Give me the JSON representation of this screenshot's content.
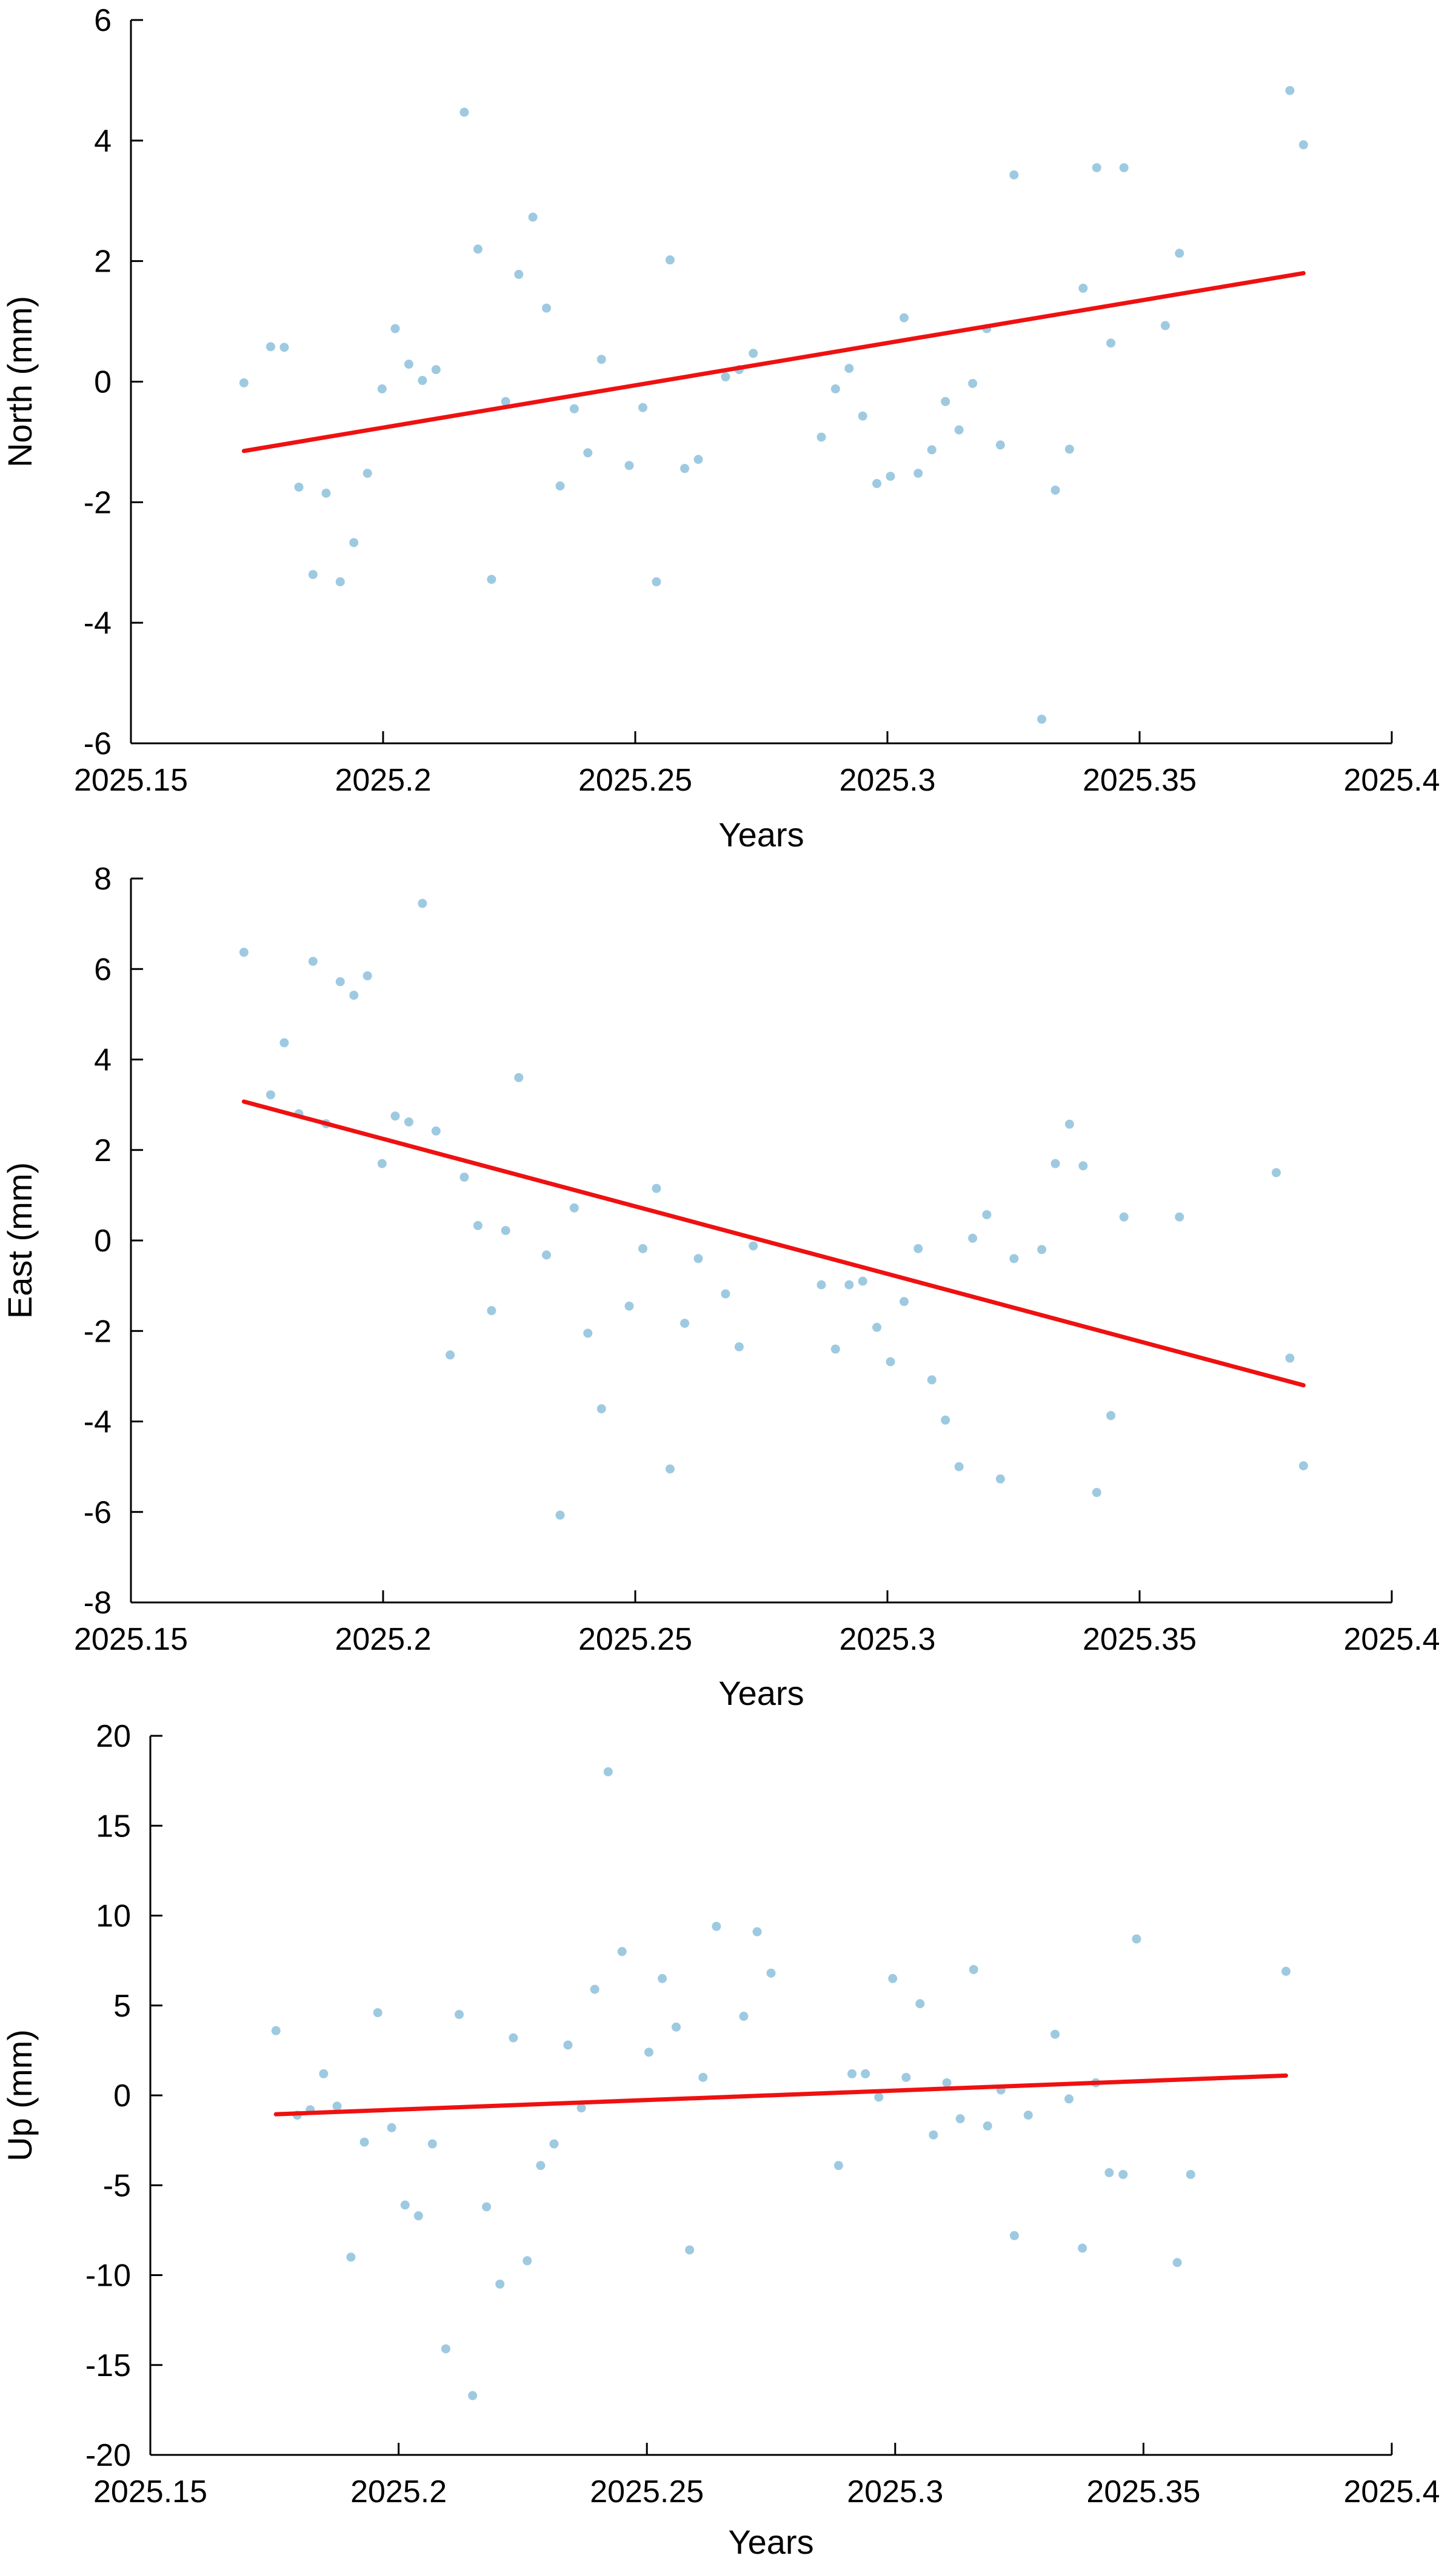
{
  "colors": {
    "points": "#9ecae1",
    "trend": "#ee1111",
    "axes": "#000000"
  },
  "chart_data": [
    {
      "type": "scatter",
      "xlabel": "Years",
      "ylabel": "North (mm)",
      "xlim": [
        2025.15,
        2025.4
      ],
      "ylim": [
        -6,
        6
      ],
      "xticks": [
        "2025.15",
        "2025.2",
        "2025.25",
        "2025.3",
        "2025.35",
        "2025.4"
      ],
      "yticks": [
        "-6",
        "-4",
        "-2",
        "0",
        "2",
        "4",
        "6"
      ],
      "points": [
        [
          2025.1724,
          -0.02
        ],
        [
          2025.1777,
          0.58
        ],
        [
          2025.1804,
          0.57
        ],
        [
          2025.1833,
          -1.75
        ],
        [
          2025.1861,
          -3.2
        ],
        [
          2025.1887,
          -1.85
        ],
        [
          2025.1915,
          -3.32
        ],
        [
          2025.1942,
          -2.67
        ],
        [
          2025.1969,
          -1.52
        ],
        [
          2025.1998,
          -0.12
        ],
        [
          2025.2024,
          0.88
        ],
        [
          2025.2051,
          0.29
        ],
        [
          2025.2078,
          0.02
        ],
        [
          2025.2105,
          0.2
        ],
        [
          2025.2161,
          4.47
        ],
        [
          2025.2188,
          2.2
        ],
        [
          2025.2215,
          -3.28
        ],
        [
          2025.2243,
          -0.33
        ],
        [
          2025.2269,
          1.78
        ],
        [
          2025.2297,
          2.73
        ],
        [
          2025.2324,
          1.22
        ],
        [
          2025.2351,
          -1.73
        ],
        [
          2025.2379,
          -0.45
        ],
        [
          2025.2406,
          -1.18
        ],
        [
          2025.2433,
          0.37
        ],
        [
          2025.2488,
          -1.39
        ],
        [
          2025.2515,
          -0.43
        ],
        [
          2025.2542,
          -3.32
        ],
        [
          2025.2569,
          2.02
        ],
        [
          2025.2598,
          -1.44
        ],
        [
          2025.2625,
          -1.29
        ],
        [
          2025.2679,
          0.08
        ],
        [
          2025.2706,
          0.2
        ],
        [
          2025.2734,
          0.47
        ],
        [
          2025.2869,
          -0.92
        ],
        [
          2025.2897,
          -0.12
        ],
        [
          2025.2924,
          0.22
        ],
        [
          2025.2951,
          -0.57
        ],
        [
          2025.2979,
          -1.69
        ],
        [
          2025.3006,
          -1.57
        ],
        [
          2025.3033,
          1.06
        ],
        [
          2025.3061,
          -1.52
        ],
        [
          2025.3088,
          -1.13
        ],
        [
          2025.3115,
          -0.33
        ],
        [
          2025.3142,
          -0.8
        ],
        [
          2025.3169,
          -0.03
        ],
        [
          2025.3197,
          0.88
        ],
        [
          2025.3224,
          -1.05
        ],
        [
          2025.3251,
          3.43
        ],
        [
          2025.3306,
          -5.6
        ],
        [
          2025.3333,
          -1.8
        ],
        [
          2025.3361,
          -1.12
        ],
        [
          2025.3388,
          1.55
        ],
        [
          2025.3415,
          3.55
        ],
        [
          2025.3443,
          0.64
        ],
        [
          2025.3469,
          3.55
        ],
        [
          2025.3551,
          0.93
        ],
        [
          2025.3579,
          2.13
        ],
        [
          2025.3798,
          4.83
        ],
        [
          2025.3825,
          3.93
        ]
      ],
      "trend": [
        [
          2025.1724,
          -1.15
        ],
        [
          2025.3825,
          1.8
        ]
      ]
    },
    {
      "type": "scatter",
      "xlabel": "Years",
      "ylabel": "East (mm)",
      "xlim": [
        2025.15,
        2025.4
      ],
      "ylim": [
        -8,
        8
      ],
      "xticks": [
        "2025.15",
        "2025.2",
        "2025.25",
        "2025.3",
        "2025.35",
        "2025.4"
      ],
      "yticks": [
        "-8",
        "-6",
        "-4",
        "-2",
        "0",
        "2",
        "4",
        "6",
        "8"
      ],
      "points": [
        [
          2025.1724,
          6.37
        ],
        [
          2025.1777,
          3.22
        ],
        [
          2025.1804,
          4.37
        ],
        [
          2025.1833,
          2.8
        ],
        [
          2025.1861,
          6.17
        ],
        [
          2025.1887,
          2.58
        ],
        [
          2025.1915,
          5.72
        ],
        [
          2025.1942,
          5.42
        ],
        [
          2025.1969,
          5.85
        ],
        [
          2025.1998,
          1.7
        ],
        [
          2025.2024,
          2.75
        ],
        [
          2025.2051,
          2.62
        ],
        [
          2025.2078,
          7.45
        ],
        [
          2025.2105,
          2.42
        ],
        [
          2025.2133,
          -2.53
        ],
        [
          2025.2161,
          1.4
        ],
        [
          2025.2188,
          0.33
        ],
        [
          2025.2215,
          -1.55
        ],
        [
          2025.2243,
          0.22
        ],
        [
          2025.2269,
          3.6
        ],
        [
          2025.2324,
          -0.32
        ],
        [
          2025.2351,
          -6.07
        ],
        [
          2025.2379,
          0.72
        ],
        [
          2025.2406,
          -2.05
        ],
        [
          2025.2433,
          -3.72
        ],
        [
          2025.2488,
          -1.45
        ],
        [
          2025.2515,
          -0.18
        ],
        [
          2025.2542,
          1.15
        ],
        [
          2025.2569,
          -5.05
        ],
        [
          2025.2598,
          -1.83
        ],
        [
          2025.2625,
          -0.4
        ],
        [
          2025.2679,
          -1.18
        ],
        [
          2025.2706,
          -2.35
        ],
        [
          2025.2734,
          -0.12
        ],
        [
          2025.2869,
          -0.98
        ],
        [
          2025.2897,
          -2.4
        ],
        [
          2025.2924,
          -0.98
        ],
        [
          2025.2951,
          -0.9
        ],
        [
          2025.2979,
          -1.92
        ],
        [
          2025.3006,
          -2.68
        ],
        [
          2025.3033,
          -1.35
        ],
        [
          2025.3061,
          -0.18
        ],
        [
          2025.3088,
          -3.08
        ],
        [
          2025.3115,
          -3.97
        ],
        [
          2025.3142,
          -5.0
        ],
        [
          2025.3169,
          0.05
        ],
        [
          2025.3197,
          0.57
        ],
        [
          2025.3224,
          -5.27
        ],
        [
          2025.3251,
          -0.4
        ],
        [
          2025.3306,
          -0.2
        ],
        [
          2025.3333,
          1.7
        ],
        [
          2025.3361,
          2.57
        ],
        [
          2025.3388,
          1.65
        ],
        [
          2025.3415,
          -5.57
        ],
        [
          2025.3443,
          -3.87
        ],
        [
          2025.3469,
          0.52
        ],
        [
          2025.3579,
          0.52
        ],
        [
          2025.3771,
          1.5
        ],
        [
          2025.3798,
          -2.6
        ],
        [
          2025.3825,
          -4.98
        ]
      ],
      "trend": [
        [
          2025.1724,
          3.07
        ],
        [
          2025.3825,
          -3.2
        ]
      ]
    },
    {
      "type": "scatter",
      "xlabel": "Years",
      "ylabel": "Up (mm)",
      "xlim": [
        2025.15,
        2025.4
      ],
      "ylim": [
        -20,
        20
      ],
      "xticks": [
        "2025.15",
        "2025.2",
        "2025.25",
        "2025.3",
        "2025.35",
        "2025.4"
      ],
      "yticks": [
        "-20",
        "-15",
        "-10",
        "-5",
        "0",
        "5",
        "10",
        "15",
        "20"
      ],
      "points": [
        [
          2025.1753,
          3.6
        ],
        [
          2025.1796,
          -1.1
        ],
        [
          2025.1822,
          -0.8
        ],
        [
          2025.1849,
          1.2
        ],
        [
          2025.1876,
          -0.6
        ],
        [
          2025.1904,
          -9.0
        ],
        [
          2025.1931,
          -2.6
        ],
        [
          2025.1958,
          4.6
        ],
        [
          2025.1986,
          -1.8
        ],
        [
          2025.2013,
          -6.1
        ],
        [
          2025.204,
          -6.7
        ],
        [
          2025.2068,
          -2.7
        ],
        [
          2025.2095,
          -14.1
        ],
        [
          2025.2122,
          4.5
        ],
        [
          2025.2149,
          -16.7
        ],
        [
          2025.2177,
          -6.2
        ],
        [
          2025.2204,
          -10.5
        ],
        [
          2025.2231,
          3.2
        ],
        [
          2025.2259,
          -9.2
        ],
        [
          2025.2286,
          -3.9
        ],
        [
          2025.2313,
          -2.7
        ],
        [
          2025.2341,
          2.8
        ],
        [
          2025.2368,
          -0.7
        ],
        [
          2025.2395,
          5.9
        ],
        [
          2025.2422,
          18.0
        ],
        [
          2025.245,
          8.0
        ],
        [
          2025.2504,
          2.4
        ],
        [
          2025.2531,
          6.5
        ],
        [
          2025.2559,
          3.8
        ],
        [
          2025.2586,
          -8.6
        ],
        [
          2025.2613,
          1.0
        ],
        [
          2025.264,
          9.4
        ],
        [
          2025.2695,
          4.4
        ],
        [
          2025.2722,
          9.1
        ],
        [
          2025.275,
          6.8
        ],
        [
          2025.2886,
          -3.9
        ],
        [
          2025.2913,
          1.2
        ],
        [
          2025.294,
          1.2
        ],
        [
          2025.2967,
          -0.1
        ],
        [
          2025.2995,
          6.5
        ],
        [
          2025.3022,
          1.0
        ],
        [
          2025.305,
          5.1
        ],
        [
          2025.3077,
          -2.2
        ],
        [
          2025.3104,
          0.7
        ],
        [
          2025.3131,
          -1.3
        ],
        [
          2025.3158,
          7.0
        ],
        [
          2025.3186,
          -1.7
        ],
        [
          2025.3213,
          0.3
        ],
        [
          2025.324,
          -7.8
        ],
        [
          2025.3268,
          -1.1
        ],
        [
          2025.3322,
          3.4
        ],
        [
          2025.335,
          -0.2
        ],
        [
          2025.3377,
          -8.5
        ],
        [
          2025.3404,
          0.7
        ],
        [
          2025.3431,
          -4.3
        ],
        [
          2025.3459,
          -4.4
        ],
        [
          2025.3486,
          8.7
        ],
        [
          2025.3568,
          -9.3
        ],
        [
          2025.3595,
          -4.4
        ],
        [
          2025.3787,
          6.9
        ]
      ],
      "trend": [
        [
          2025.1753,
          -1.05
        ],
        [
          2025.3787,
          1.1
        ]
      ]
    }
  ]
}
